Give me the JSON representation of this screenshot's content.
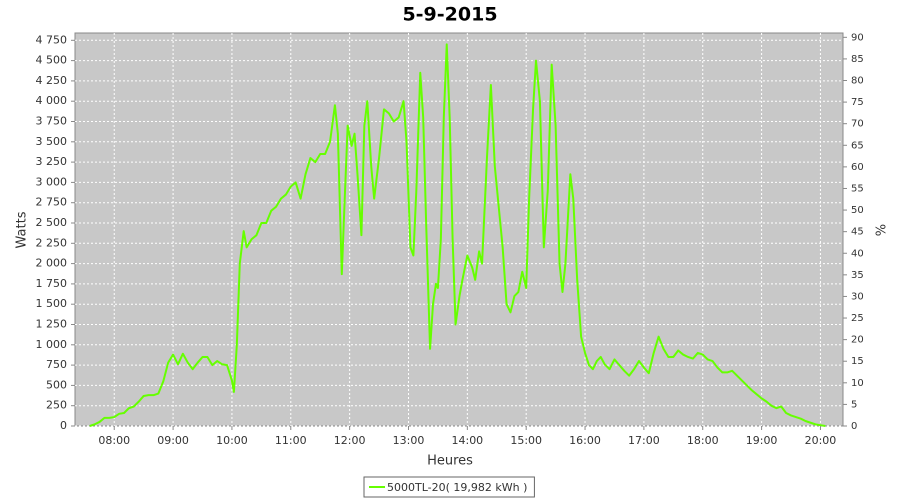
{
  "chart_data": {
    "type": "line",
    "title": "5-9-2015",
    "x_label": "Heures",
    "y_label": "Watts",
    "y2_label": "%",
    "x": [
      "07:35",
      "07:40",
      "07:45",
      "07:50",
      "07:55",
      "08:00",
      "08:05",
      "08:10",
      "08:15",
      "08:20",
      "08:25",
      "08:30",
      "08:35",
      "08:40",
      "08:45",
      "08:50",
      "08:55",
      "09:00",
      "09:05",
      "09:10",
      "09:15",
      "09:20",
      "09:25",
      "09:30",
      "09:35",
      "09:40",
      "09:45",
      "09:50",
      "09:55",
      "10:00",
      "10:02",
      "10:05",
      "10:08",
      "10:12",
      "10:15",
      "10:20",
      "10:25",
      "10:30",
      "10:35",
      "10:40",
      "10:45",
      "10:50",
      "10:55",
      "11:00",
      "11:05",
      "11:10",
      "11:15",
      "11:20",
      "11:25",
      "11:30",
      "11:35",
      "11:40",
      "11:45",
      "11:48",
      "11:52",
      "11:55",
      "11:58",
      "12:02",
      "12:05",
      "12:08",
      "12:12",
      "12:15",
      "12:18",
      "12:22",
      "12:25",
      "12:30",
      "12:35",
      "12:40",
      "12:45",
      "12:50",
      "12:55",
      "12:58",
      "13:02",
      "13:05",
      "13:08",
      "13:12",
      "13:15",
      "13:18",
      "13:22",
      "13:25",
      "13:28",
      "13:30",
      "13:33",
      "13:36",
      "13:39",
      "13:42",
      "13:45",
      "13:48",
      "13:52",
      "13:55",
      "14:00",
      "14:05",
      "14:08",
      "14:12",
      "14:15",
      "14:20",
      "14:24",
      "14:28",
      "14:32",
      "14:36",
      "14:40",
      "14:44",
      "14:48",
      "14:52",
      "14:56",
      "15:00",
      "15:03",
      "15:07",
      "15:10",
      "15:14",
      "15:18",
      "15:22",
      "15:26",
      "15:30",
      "15:34",
      "15:37",
      "15:40",
      "15:45",
      "15:48",
      "15:52",
      "15:56",
      "16:00",
      "16:04",
      "16:08",
      "16:12",
      "16:16",
      "16:20",
      "16:25",
      "16:30",
      "16:35",
      "16:40",
      "16:45",
      "16:50",
      "16:55",
      "17:00",
      "17:05",
      "17:10",
      "17:15",
      "17:20",
      "17:25",
      "17:30",
      "17:35",
      "17:40",
      "17:45",
      "17:50",
      "17:55",
      "18:00",
      "18:05",
      "18:10",
      "18:15",
      "18:20",
      "18:25",
      "18:30",
      "18:35",
      "18:40",
      "18:45",
      "18:50",
      "18:55",
      "19:00",
      "19:05",
      "19:10",
      "19:15",
      "19:20",
      "19:25",
      "19:30",
      "19:35",
      "19:40",
      "19:45",
      "19:50",
      "19:55",
      "20:00",
      "20:05"
    ],
    "series": [
      {
        "name": "5000TL-20( 19,982 kWh )",
        "color": "#66ff00",
        "values": [
          0,
          20,
          50,
          100,
          100,
          110,
          150,
          160,
          220,
          240,
          300,
          370,
          380,
          380,
          400,
          550,
          780,
          880,
          760,
          890,
          780,
          700,
          780,
          850,
          850,
          750,
          800,
          760,
          750,
          560,
          420,
          1000,
          2000,
          2400,
          2200,
          2300,
          2350,
          2500,
          2500,
          2650,
          2700,
          2800,
          2850,
          2950,
          3000,
          2800,
          3100,
          3300,
          3250,
          3350,
          3350,
          3500,
          3950,
          3600,
          1870,
          2800,
          3700,
          3450,
          3600,
          3100,
          2350,
          3700,
          4000,
          3200,
          2800,
          3300,
          3900,
          3850,
          3750,
          3800,
          4000,
          3500,
          2200,
          2100,
          2900,
          4350,
          3800,
          2500,
          950,
          1500,
          1750,
          1700,
          2300,
          3800,
          4700,
          3800,
          2300,
          1250,
          1600,
          1800,
          2100,
          1950,
          1800,
          2150,
          2000,
          3300,
          4200,
          3200,
          2700,
          2200,
          1500,
          1400,
          1600,
          1650,
          1900,
          1700,
          2800,
          3900,
          4500,
          4000,
          2200,
          2900,
          4450,
          3700,
          2000,
          1650,
          2000,
          3100,
          2800,
          1800,
          1100,
          900,
          750,
          700,
          800,
          850,
          760,
          700,
          820,
          750,
          680,
          620,
          700,
          800,
          720,
          650,
          900,
          1100,
          950,
          850,
          850,
          930,
          880,
          850,
          830,
          900,
          880,
          820,
          800,
          720,
          660,
          660,
          680,
          620,
          560,
          500,
          440,
          390,
          340,
          300,
          250,
          220,
          240,
          160,
          130,
          110,
          90,
          60,
          40,
          20,
          10,
          0
        ]
      }
    ],
    "xlim": [
      "07:20",
      "20:23"
    ],
    "xticks": [
      "08:00",
      "09:00",
      "10:00",
      "11:00",
      "12:00",
      "13:00",
      "14:00",
      "15:00",
      "16:00",
      "17:00",
      "18:00",
      "19:00",
      "20:00"
    ],
    "ylim": [
      0,
      4840
    ],
    "yticks": [
      0,
      250,
      500,
      750,
      {
        "value": 1000,
        "label": "1 000"
      },
      {
        "value": 1250,
        "label": "1 250"
      },
      {
        "value": 1500,
        "label": "1 500"
      },
      {
        "value": 1750,
        "label": "1 750"
      },
      {
        "value": 2000,
        "label": "2 000"
      },
      {
        "value": 2250,
        "label": "2 250"
      },
      {
        "value": 2500,
        "label": "2 500"
      },
      {
        "value": 2750,
        "label": "2 750"
      },
      {
        "value": 3000,
        "label": "3 000"
      },
      {
        "value": 3250,
        "label": "3 250"
      },
      {
        "value": 3500,
        "label": "3 500"
      },
      {
        "value": 3750,
        "label": "3 750"
      },
      {
        "value": 4000,
        "label": "4 000"
      },
      {
        "value": 4250,
        "label": "4 250"
      },
      {
        "value": 4500,
        "label": "4 500"
      },
      {
        "value": 4750,
        "label": "4 750"
      }
    ],
    "y2lim": [
      0,
      91
    ],
    "y2ticks": [
      0,
      5,
      10,
      15,
      20,
      25,
      30,
      35,
      40,
      45,
      50,
      55,
      60,
      65,
      70,
      75,
      80,
      85,
      90
    ],
    "grid": true,
    "legend": "bottom"
  }
}
